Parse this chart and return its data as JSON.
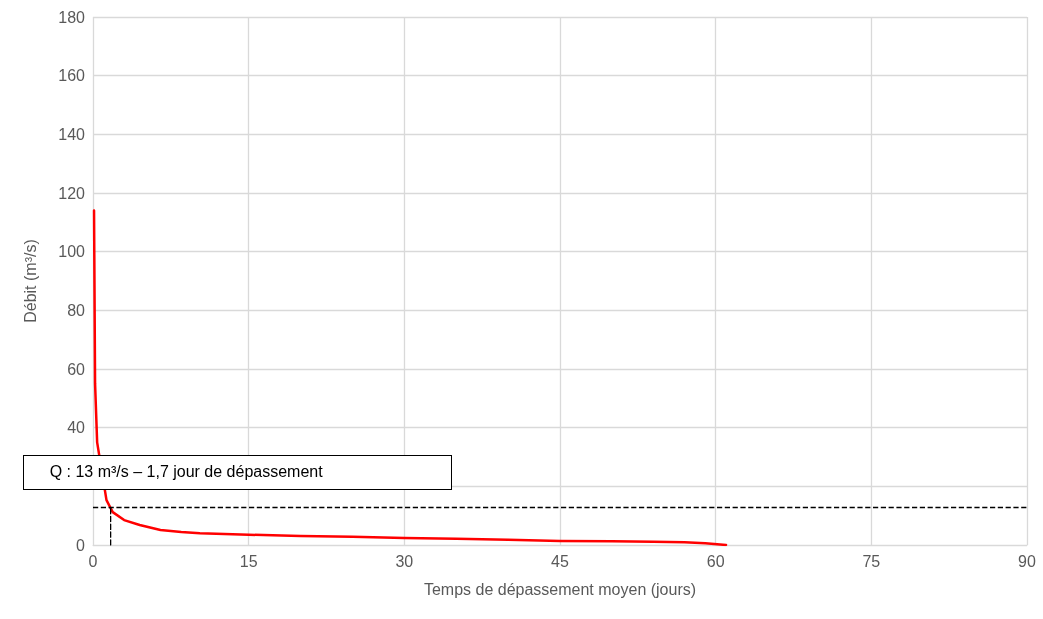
{
  "chart_data": {
    "type": "line",
    "xlabel": "Temps de dépassement moyen (jours)",
    "ylabel": "Débit (m³/s)",
    "series": [
      {
        "color": "#ff0000",
        "x": [
          0.1,
          0.2,
          0.4,
          1.3,
          1.9,
          3.0,
          4.5,
          6.5,
          8.5,
          10.3,
          15,
          20,
          25,
          30,
          35,
          40,
          45,
          50,
          54,
          57,
          59,
          61
        ],
        "values": [
          114,
          55,
          35,
          15.3,
          11.2,
          8.5,
          6.8,
          5.1,
          4.4,
          4.0,
          3.5,
          3.1,
          2.8,
          2.4,
          2.1,
          1.8,
          1.4,
          1.3,
          1.1,
          0.9,
          0.6,
          0
        ]
      },
      {
        "type": "line",
        "color": "#000000",
        "line_style": "dashed",
        "x": [
          1.7,
          1.7
        ],
        "values": [
          0,
          13
        ]
      }
    ],
    "xlim": [
      0,
      90
    ],
    "xticks": [
      0,
      15,
      30,
      45,
      60,
      75,
      90
    ],
    "ylim": [
      0,
      180
    ],
    "yticks": [
      0,
      {
        "value": 20,
        "label": null
      },
      40,
      60,
      80,
      100,
      120,
      140,
      160,
      180
    ],
    "grid": true,
    "marker": "none",
    "line_style": "solid",
    "ref_lines": [
      {
        "axis": "y",
        "value": 13,
        "color": "#000000",
        "line_style": "dashed"
      }
    ],
    "annotations": [
      {
        "text": "Q : 13 m³/s – 1,7 jour de dépassement",
        "x": 1.7,
        "y": 13
      }
    ]
  }
}
